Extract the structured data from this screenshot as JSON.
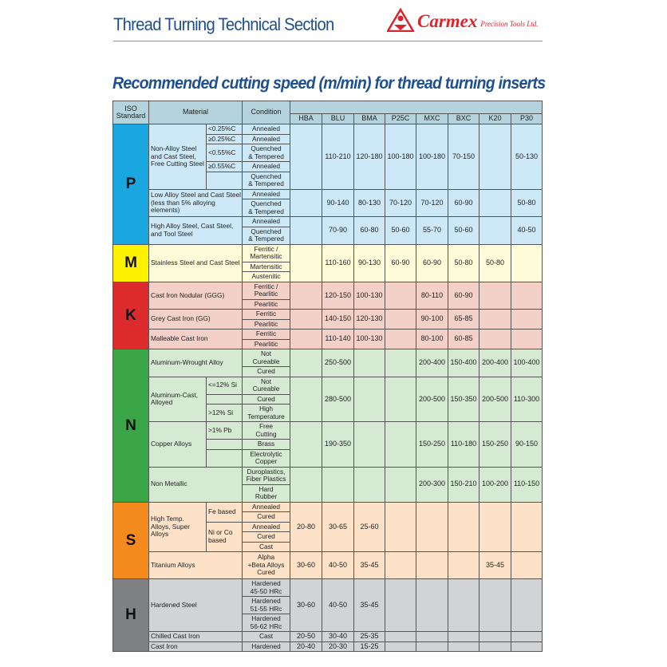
{
  "header": {
    "section_title": "Thread Turning Technical Section",
    "brand": "Carmex",
    "brand_sub": "Precision Tools Ltd."
  },
  "title": "Recommended cutting speed (m/min) for thread turning inserts",
  "colors": {
    "title_blue": "#1d4f91",
    "brand_red": "#d9252c",
    "header_bg": "#b4d3dc"
  },
  "table": {
    "headers": {
      "iso": "ISO Standard",
      "material": "Material",
      "condition": "Condition"
    },
    "grades": [
      "HBA",
      "BLU",
      "BMA",
      "P25C",
      "MXC",
      "BXC",
      "K20",
      "P30"
    ],
    "groups": [
      {
        "iso": "P",
        "color": "#1aa7e0",
        "bg": "#cde9f7",
        "materials": [
          {
            "name": "Non-Alloy Steel and Cast Steel, Free Cutting Steel",
            "subs": [
              {
                "label": "<0.25%C",
                "conds": [
                  "Annealed"
                ]
              },
              {
                "label": "≥0.25%C",
                "conds": [
                  "Annealed"
                ]
              },
              {
                "label": "<0.55%C",
                "conds": [
                  "Quenched\n& Tempered"
                ]
              },
              {
                "label": "≥0.55%C",
                "conds": [
                  "Annealed"
                ]
              },
              {
                "label": "",
                "conds": [
                  "Quenched\n& Tempered"
                ]
              }
            ],
            "values": [
              "",
              "110-210",
              "120-180",
              "100-180",
              "100-180",
              "70-150",
              "",
              "50-130"
            ]
          },
          {
            "name": "Low Alloy Steel and Cast Steel (less than 5% alloying elements)",
            "conds": [
              "Annealed",
              "Quenched\n& Tempered"
            ],
            "values": [
              "",
              "90-140",
              "80-130",
              "70-120",
              "70-120",
              "60-90",
              "",
              "50-80"
            ]
          },
          {
            "name": "High Alloy Steel, Cast Steel, and Tool Steel",
            "conds": [
              "Annealed",
              "Quenched\n& Tempered"
            ],
            "values": [
              "",
              "70-90",
              "60-80",
              "50-60",
              "55-70",
              "50-60",
              "",
              "40-50"
            ]
          }
        ]
      },
      {
        "iso": "M",
        "color": "#fff200",
        "bg": "#fefbd9",
        "materials": [
          {
            "name": "Stainless Steel and Cast Steel",
            "conds": [
              "Ferritic /\nMartensitic",
              "Martensitic",
              "Austenitic"
            ],
            "values": [
              "",
              "110-160",
              "90-130",
              "60-90",
              "60-90",
              "50-80",
              "50-80",
              ""
            ]
          }
        ]
      },
      {
        "iso": "K",
        "color": "#dc2a2d",
        "bg": "#f3d0c8",
        "materials": [
          {
            "name": "Cast Iron Nodular (GGG)",
            "conds": [
              "Ferritic /\nPearlitic",
              "Pearlitic"
            ],
            "values": [
              "",
              "120-150",
              "100-130",
              "",
              "80-110",
              "60-90",
              "",
              ""
            ]
          },
          {
            "name": "Grey Cast Iron (GG)",
            "conds": [
              "Ferritic",
              "Pearlitic"
            ],
            "values": [
              "",
              "140-150",
              "120-130",
              "",
              "90-100",
              "65-85",
              "",
              ""
            ]
          },
          {
            "name": "Malleable Cast Iron",
            "conds": [
              "Ferritic",
              "Pearlitic"
            ],
            "values": [
              "",
              "110-140",
              "100-130",
              "",
              "80-100",
              "60-85",
              "",
              ""
            ]
          }
        ]
      },
      {
        "iso": "N",
        "color": "#3aa648",
        "bg": "#d6ead3",
        "materials": [
          {
            "name": "Aluminum-Wrought Alloy",
            "conds": [
              "Not\nCureable",
              "Cured"
            ],
            "values": [
              "",
              "250-500",
              "",
              "",
              "200-400",
              "150-400",
              "200-400",
              "100-400"
            ]
          },
          {
            "name": "Aluminum-Cast, Alloyed",
            "subs": [
              {
                "label": "<=12% Si",
                "conds": [
                  "Not\nCureable"
                ]
              },
              {
                "label": "",
                "conds": [
                  "Cured"
                ]
              },
              {
                "label": ">12% Si",
                "conds": [
                  "High\nTemperature"
                ]
              }
            ],
            "values": [
              "",
              "280-500",
              "",
              "",
              "200-500",
              "150-350",
              "200-500",
              "110-300"
            ]
          },
          {
            "name": "Copper Alloys",
            "subs": [
              {
                "label": ">1% Pb",
                "conds": [
                  "Free\nCutting"
                ]
              },
              {
                "label": "",
                "conds": [
                  "Brass"
                ]
              },
              {
                "label": "",
                "conds": [
                  "Electrolytic\nCopper"
                ]
              }
            ],
            "values": [
              "",
              "190-350",
              "",
              "",
              "150-250",
              "110-180",
              "150-250",
              "90-150"
            ]
          },
          {
            "name": "Non Metallic",
            "conds": [
              "Duroplastics,\nFiber Plastics",
              "Hard\nRubber"
            ],
            "values": [
              "",
              "",
              "",
              "",
              "200-300",
              "150-210",
              "100-200",
              "110-150"
            ]
          }
        ]
      },
      {
        "iso": "S",
        "color": "#f58a1f",
        "bg": "#fde2c8",
        "materials": [
          {
            "name": "High Temp. Alloys, Super Alloys",
            "subs": [
              {
                "label": "Fe based",
                "conds": [
                  "Annealed",
                  "Cured"
                ]
              },
              {
                "label": "Ni or Co based",
                "conds": [
                  "Annealed",
                  "Cured",
                  "Cast"
                ]
              }
            ],
            "values": [
              "20-80",
              "30-65",
              "25-60",
              "",
              "",
              "",
              "",
              ""
            ]
          },
          {
            "name": "Titanium Alloys",
            "conds": [
              "Alpha\n+Beta Alloys\nCured"
            ],
            "values": [
              "30-60",
              "40-50",
              "35-45",
              "",
              "",
              "",
              "35-45",
              ""
            ]
          }
        ]
      },
      {
        "iso": "H",
        "color": "#7f8081",
        "bg": "#d2d3d5",
        "materials": [
          {
            "name": "Hardened Steel",
            "conds": [
              "Hardened\n45-50 HRc",
              "Hardened\n51-55 HRc",
              "Hardened\n56-62 HRc"
            ],
            "values": [
              "30-60",
              "40-50",
              "35-45",
              "",
              "",
              "",
              "",
              ""
            ]
          },
          {
            "name": "Chilled Cast Iron",
            "conds": [
              "Cast"
            ],
            "values": [
              "20-50",
              "30-40",
              "25-35",
              "",
              "",
              "",
              "",
              ""
            ]
          },
          {
            "name": "Cast Iron",
            "conds": [
              "Hardened"
            ],
            "values": [
              "20-40",
              "20-30",
              "15-25",
              "",
              "",
              "",
              "",
              ""
            ]
          }
        ]
      }
    ]
  }
}
